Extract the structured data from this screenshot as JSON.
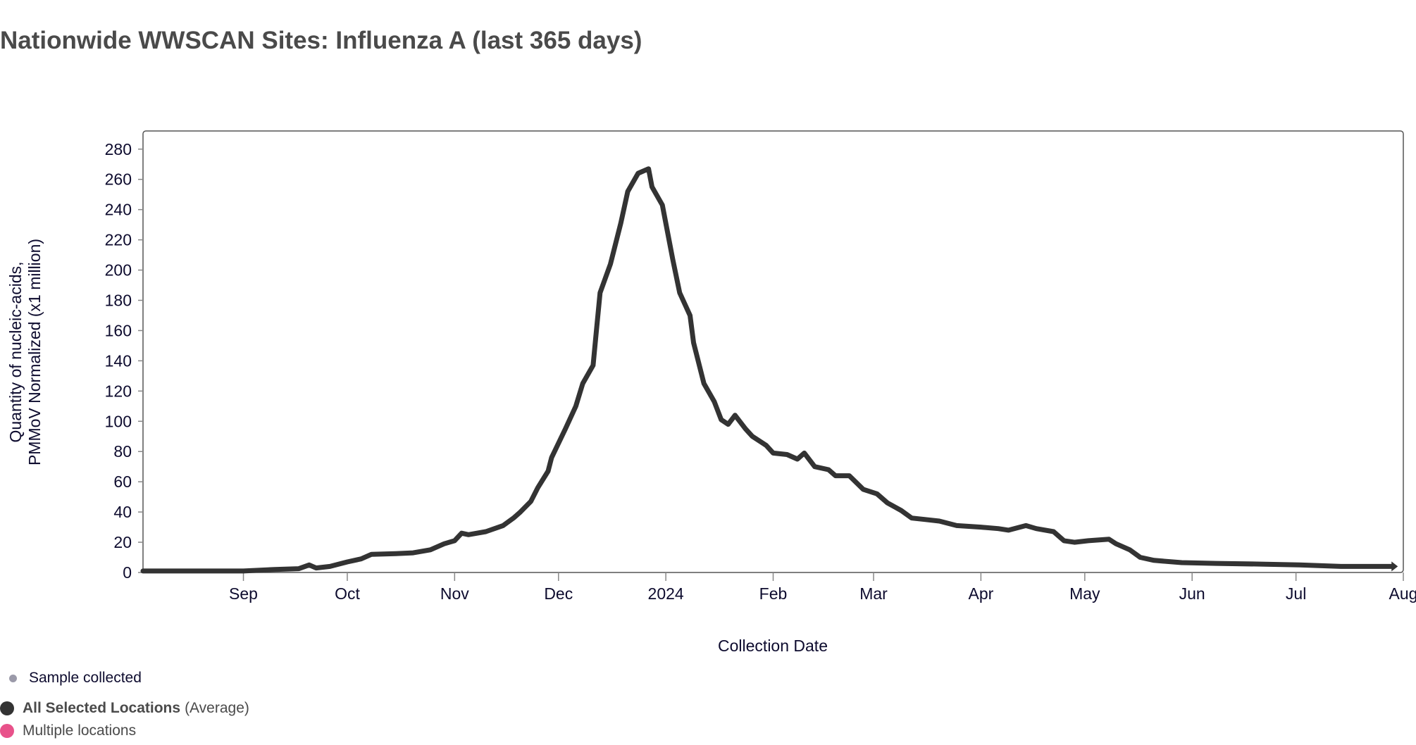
{
  "title": "Nationwide WWSCAN Sites: Influenza A (last 365 days)",
  "legend": {
    "sample_label": "Sample collected",
    "series_bold": "All Selected Locations",
    "series_suffix": "(Average)",
    "multiple_label": "Multiple locations",
    "colors": {
      "sample": "#9b9aa9",
      "series": "#333333",
      "multiple": "#e8528a"
    }
  },
  "chart_data": {
    "type": "line",
    "title": "Nationwide WWSCAN Sites: Influenza A (last 365 days)",
    "xlabel": "Collection Date",
    "ylabel": [
      "Quantity of nucleic-acids,",
      "PMMoV Normalized (x1 million)"
    ],
    "xlim": [
      "2023-08-03",
      "2024-08-01"
    ],
    "ylim": [
      0,
      292
    ],
    "yticks": [
      0,
      20,
      40,
      60,
      80,
      100,
      120,
      140,
      160,
      180,
      200,
      220,
      240,
      260,
      280
    ],
    "xticks": [
      {
        "date": "2023-09-01",
        "label": "Sep"
      },
      {
        "date": "2023-10-01",
        "label": "Oct"
      },
      {
        "date": "2023-11-01",
        "label": "Nov"
      },
      {
        "date": "2023-12-01",
        "label": "Dec"
      },
      {
        "date": "2024-01-01",
        "label": "2024"
      },
      {
        "date": "2024-02-01",
        "label": "Feb"
      },
      {
        "date": "2024-03-01",
        "label": "Mar"
      },
      {
        "date": "2024-04-01",
        "label": "Apr"
      },
      {
        "date": "2024-05-01",
        "label": "May"
      },
      {
        "date": "2024-06-01",
        "label": "Jun"
      },
      {
        "date": "2024-07-01",
        "label": "Jul"
      },
      {
        "date": "2024-08-01",
        "label": "Aug"
      }
    ],
    "series": [
      {
        "name": "All Selected Locations (Average)",
        "color": "#333333",
        "points": [
          [
            "2023-08-03",
            1
          ],
          [
            "2023-08-20",
            1
          ],
          [
            "2023-09-01",
            1
          ],
          [
            "2023-09-10",
            2
          ],
          [
            "2023-09-17",
            2.5
          ],
          [
            "2023-09-20",
            5
          ],
          [
            "2023-09-22",
            3
          ],
          [
            "2023-09-26",
            4
          ],
          [
            "2023-10-01",
            7
          ],
          [
            "2023-10-05",
            9
          ],
          [
            "2023-10-08",
            12
          ],
          [
            "2023-10-15",
            12.5
          ],
          [
            "2023-10-20",
            13
          ],
          [
            "2023-10-25",
            15
          ],
          [
            "2023-10-29",
            19
          ],
          [
            "2023-11-01",
            21
          ],
          [
            "2023-11-03",
            26
          ],
          [
            "2023-11-05",
            25
          ],
          [
            "2023-11-10",
            27
          ],
          [
            "2023-11-15",
            31
          ],
          [
            "2023-11-18",
            36
          ],
          [
            "2023-11-20",
            40
          ],
          [
            "2023-11-23",
            47
          ],
          [
            "2023-11-25",
            56
          ],
          [
            "2023-11-28",
            67
          ],
          [
            "2023-11-29",
            76
          ],
          [
            "2023-12-03",
            95
          ],
          [
            "2023-12-06",
            110
          ],
          [
            "2023-12-08",
            125
          ],
          [
            "2023-12-11",
            137
          ],
          [
            "2023-12-12",
            161
          ],
          [
            "2023-12-13",
            185
          ],
          [
            "2023-12-16",
            204
          ],
          [
            "2023-12-19",
            231
          ],
          [
            "2023-12-21",
            252
          ],
          [
            "2023-12-24",
            264
          ],
          [
            "2023-12-27",
            267
          ],
          [
            "2023-12-28",
            255
          ],
          [
            "2023-12-31",
            243
          ],
          [
            "2024-01-03",
            207
          ],
          [
            "2024-01-05",
            185
          ],
          [
            "2024-01-08",
            170
          ],
          [
            "2024-01-09",
            152
          ],
          [
            "2024-01-12",
            125
          ],
          [
            "2024-01-15",
            113
          ],
          [
            "2024-01-17",
            101
          ],
          [
            "2024-01-19",
            98
          ],
          [
            "2024-01-21",
            104
          ],
          [
            "2024-01-24",
            95
          ],
          [
            "2024-01-26",
            90
          ],
          [
            "2024-01-30",
            84
          ],
          [
            "2024-02-01",
            79
          ],
          [
            "2024-02-05",
            78
          ],
          [
            "2024-02-08",
            75
          ],
          [
            "2024-02-10",
            79
          ],
          [
            "2024-02-13",
            70
          ],
          [
            "2024-02-17",
            68
          ],
          [
            "2024-02-19",
            64
          ],
          [
            "2024-02-23",
            64
          ],
          [
            "2024-02-27",
            55
          ],
          [
            "2024-03-02",
            52
          ],
          [
            "2024-03-05",
            46
          ],
          [
            "2024-03-09",
            41
          ],
          [
            "2024-03-12",
            36
          ],
          [
            "2024-03-16",
            35
          ],
          [
            "2024-03-20",
            34
          ],
          [
            "2024-03-25",
            31
          ],
          [
            "2024-04-01",
            30
          ],
          [
            "2024-04-06",
            29
          ],
          [
            "2024-04-09",
            28
          ],
          [
            "2024-04-14",
            31
          ],
          [
            "2024-04-17",
            29
          ],
          [
            "2024-04-22",
            27
          ],
          [
            "2024-04-25",
            21
          ],
          [
            "2024-04-28",
            20
          ],
          [
            "2024-05-02",
            21
          ],
          [
            "2024-05-08",
            22
          ],
          [
            "2024-05-10",
            19
          ],
          [
            "2024-05-14",
            15
          ],
          [
            "2024-05-17",
            10
          ],
          [
            "2024-05-21",
            8
          ],
          [
            "2024-05-29",
            6.5
          ],
          [
            "2024-06-08",
            6
          ],
          [
            "2024-06-22",
            5.5
          ],
          [
            "2024-07-02",
            5
          ],
          [
            "2024-07-14",
            4
          ],
          [
            "2024-07-29",
            4
          ]
        ]
      }
    ]
  }
}
